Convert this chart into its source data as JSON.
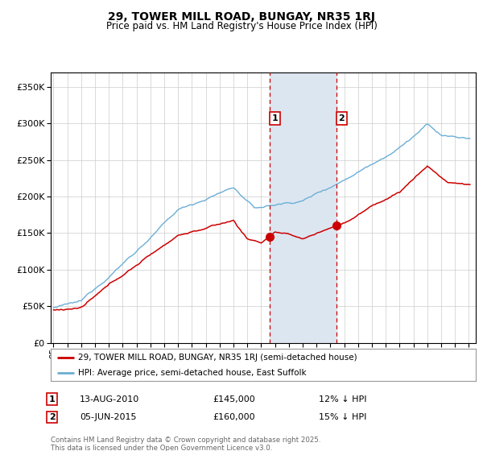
{
  "title": "29, TOWER MILL ROAD, BUNGAY, NR35 1RJ",
  "subtitle": "Price paid vs. HM Land Registry's House Price Index (HPI)",
  "ytick_values": [
    0,
    50000,
    100000,
    150000,
    200000,
    250000,
    300000,
    350000
  ],
  "ylim": [
    0,
    370000
  ],
  "xlim_start": 1994.8,
  "xlim_end": 2025.5,
  "hpi_color": "#6baed6",
  "price_color": "#cc0000",
  "sale1_x": 2010.617,
  "sale1_y": 145000,
  "sale1_label": "1",
  "sale1_date": "13-AUG-2010",
  "sale1_price": "£145,000",
  "sale1_info": "12% ↓ HPI",
  "sale2_x": 2015.425,
  "sale2_y": 160000,
  "sale2_label": "2",
  "sale2_date": "05-JUN-2015",
  "sale2_price": "£160,000",
  "sale2_info": "15% ↓ HPI",
  "vline_color": "#cc0000",
  "shade_color": "#dce6f1",
  "legend_line1": "29, TOWER MILL ROAD, BUNGAY, NR35 1RJ (semi-detached house)",
  "legend_line2": "HPI: Average price, semi-detached house, East Suffolk",
  "footnote": "Contains HM Land Registry data © Crown copyright and database right 2025.\nThis data is licensed under the Open Government Licence v3.0.",
  "background_color": "#ffffff",
  "grid_color": "#cccccc"
}
